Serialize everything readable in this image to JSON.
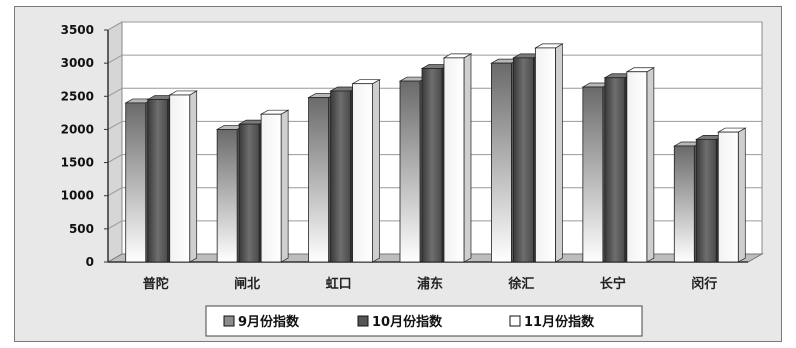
{
  "chart_data": {
    "type": "bar",
    "categories": [
      "普陀",
      "闸北",
      "虹口",
      "浦东",
      "徐汇",
      "长宁",
      "闵行"
    ],
    "series": [
      {
        "name": "9月份指数",
        "values": [
          2400,
          2000,
          2480,
          2730,
          3000,
          2640,
          1750
        ]
      },
      {
        "name": "10月份指数",
        "values": [
          2450,
          2080,
          2580,
          2920,
          3080,
          2780,
          1850
        ]
      },
      {
        "name": "11月份指数",
        "values": [
          2520,
          2230,
          2690,
          3080,
          3230,
          2870,
          1960
        ]
      }
    ],
    "ylim": [
      0,
      3500
    ],
    "yticks": [
      "0",
      "500",
      "1000",
      "1500",
      "2000",
      "2500",
      "3000",
      "3500"
    ],
    "grid": true,
    "legend_position": "bottom",
    "colors": {
      "series_9": "#8c8c8c",
      "series_10": "#555555",
      "series_11": "#ffffff",
      "plot_back": "#ffffff",
      "frame_back": "#e8e8e8",
      "floor": "#bdbdbd"
    }
  }
}
